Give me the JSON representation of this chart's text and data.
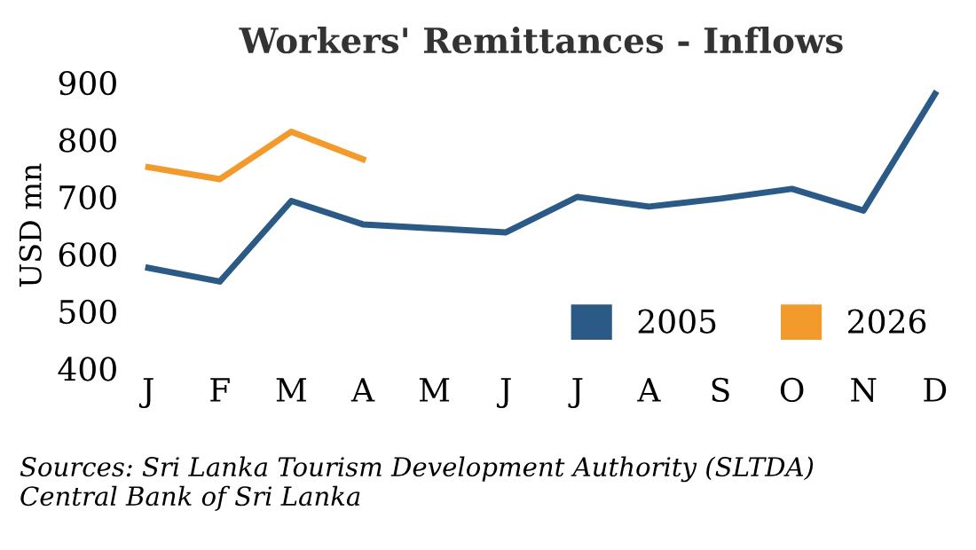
{
  "chart_data": {
    "type": "line",
    "title": "Workers' Remittances - Inflows",
    "ylabel": "USD mn",
    "categories": [
      "J",
      "F",
      "M",
      "A",
      "M",
      "J",
      "J",
      "A",
      "S",
      "O",
      "N",
      "D"
    ],
    "series": [
      {
        "name": "2005",
        "color": "#2b5a87",
        "values": [
          576,
          552,
          693,
          652,
          645,
          638,
          700,
          683,
          697,
          714,
          676,
          880
        ]
      },
      {
        "name": "2026",
        "color": "#f39a2c",
        "values": [
          752,
          731,
          814,
          766,
          null,
          null,
          null,
          null,
          null,
          null,
          null,
          null
        ]
      }
    ],
    "ylim": [
      400,
      900
    ],
    "yticks": [
      400,
      500,
      600,
      700,
      800,
      900
    ],
    "grid": false,
    "legend": "bottom right",
    "marker": "none",
    "line_style": "solid",
    "annotations": [
      "Sources: Sri Lanka Tourism Development Authority (SLTDA)\nCentral Bank of Sri Lanka"
    ]
  }
}
